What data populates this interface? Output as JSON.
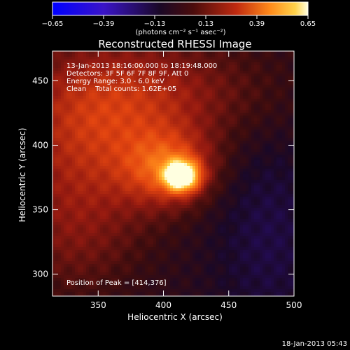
{
  "chart_data": {
    "type": "heatmap",
    "title": "Reconstructed RHESSI Image",
    "xlabel": "Heliocentric X (arcsec)",
    "ylabel": "Heliocentric Y (arcsec)",
    "xlim": [
      315,
      500
    ],
    "ylim": [
      283,
      473
    ],
    "xticks": [
      350,
      400,
      450,
      500
    ],
    "yticks": [
      300,
      350,
      400,
      450
    ],
    "colorbar": {
      "range": [
        -0.65,
        0.65
      ],
      "ticks": [
        -0.65,
        -0.39,
        -0.13,
        0.13,
        0.39,
        0.65
      ],
      "tick_labels": [
        "−0.65",
        "−0.39",
        "−0.13",
        "0.13",
        "0.39",
        "0.65"
      ],
      "unit_label": "(photons cm⁻² s⁻¹ asec⁻²)"
    },
    "annotations": [
      "13-Jan-2013 18:16:00.000 to 18:19:48.000",
      "Detectors: 3F 5F 6F 7F 8F 9F, Att 0",
      "Energy Range: 3.0 - 6.0 keV",
      "Clean    Total counts: 1.62E+05"
    ],
    "peak_label": "Position of Peak = [414,376]",
    "peak": [
      414,
      376
    ],
    "peak_value": 0.65,
    "footer_date": "18-Jan-2013 05:43"
  },
  "colors": {
    "colormap": [
      "#0000ff",
      "#4010a0",
      "#220833",
      "#3a0a0a",
      "#9a1a10",
      "#e24410",
      "#ff8a1a",
      "#ffd24a",
      "#ffffe0"
    ],
    "background": "#000000",
    "foreground": "#ffffff"
  }
}
